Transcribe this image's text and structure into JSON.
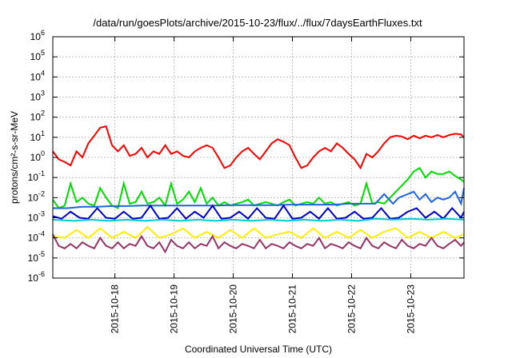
{
  "chart_data": {
    "type": "line",
    "title": "/data/run/goesPlots/archive/2015-10-23/flux/../flux/7daysEarthFluxes.txt",
    "xlabel": "Coordinated Universal Time (UTC)",
    "ylabel": "protons/cm²-s-sr-MeV",
    "x_range_days": [
      16.95,
      23.9
    ],
    "yscale": "log",
    "ylim_exp": [
      -6,
      6
    ],
    "y_tick_exponents": [
      -6,
      -5,
      -4,
      -3,
      -2,
      -1,
      0,
      1,
      2,
      3,
      4,
      5,
      6
    ],
    "y_tick_base": "10",
    "x_ticks": [
      {
        "day": 18,
        "label": "2015-10-18"
      },
      {
        "day": 19,
        "label": "2015-10-19"
      },
      {
        "day": 20,
        "label": "2015-10-20"
      },
      {
        "day": 21,
        "label": "2015-10-21"
      },
      {
        "day": 22,
        "label": "2015-10-22"
      },
      {
        "day": 23,
        "label": "2015-10-23"
      }
    ],
    "grid": true,
    "legend": "none",
    "series": [
      {
        "color": "#ff0000",
        "x": [
          16.95,
          17.05,
          17.15,
          17.25,
          17.35,
          17.45,
          17.55,
          17.65,
          17.75,
          17.85,
          17.95,
          18.05,
          18.15,
          18.25,
          18.35,
          18.45,
          18.55,
          18.65,
          18.75,
          18.85,
          18.95,
          19.05,
          19.15,
          19.25,
          19.35,
          19.45,
          19.55,
          19.65,
          19.75,
          19.85,
          19.95,
          20.05,
          20.15,
          20.25,
          20.35,
          20.45,
          20.55,
          20.65,
          20.75,
          20.85,
          20.95,
          21.05,
          21.15,
          21.25,
          21.35,
          21.45,
          21.55,
          21.65,
          21.75,
          21.85,
          21.95,
          22.05,
          22.15,
          22.25,
          22.35,
          22.45,
          22.55,
          22.65,
          22.75,
          22.85,
          22.95,
          23.05,
          23.15,
          23.25,
          23.35,
          23.45,
          23.55,
          23.65,
          23.75,
          23.85,
          23.9
        ],
        "y": [
          2,
          0.8,
          0.6,
          0.4,
          2,
          1,
          5,
          12,
          30,
          35,
          4,
          2,
          4,
          1.2,
          1.5,
          3,
          1,
          2,
          1.5,
          4,
          1.5,
          2,
          1.2,
          1,
          2,
          3,
          4,
          3,
          1,
          0.3,
          0.4,
          1,
          2,
          3,
          1.5,
          0.8,
          2,
          5,
          8,
          6,
          4,
          1,
          0.3,
          0.4,
          1,
          2,
          3,
          2,
          5,
          3,
          1.5,
          0.8,
          0.3,
          1.5,
          1,
          2,
          5,
          10,
          12,
          11,
          8,
          12,
          9,
          12,
          10,
          13,
          10,
          13,
          15,
          14,
          10
        ]
      },
      {
        "color": "#00dd00",
        "x": [
          16.95,
          17.05,
          17.15,
          17.25,
          17.35,
          17.45,
          17.55,
          17.65,
          17.75,
          17.85,
          17.95,
          18.05,
          18.15,
          18.25,
          18.35,
          18.45,
          18.55,
          18.65,
          18.75,
          18.85,
          18.95,
          19.05,
          19.15,
          19.25,
          19.35,
          19.45,
          19.55,
          19.65,
          19.75,
          19.85,
          19.95,
          20.05,
          20.15,
          20.25,
          20.35,
          20.45,
          20.55,
          20.65,
          20.75,
          20.85,
          20.95,
          21.05,
          21.15,
          21.25,
          21.35,
          21.45,
          21.55,
          21.65,
          21.75,
          21.85,
          21.95,
          22.05,
          22.15,
          22.25,
          22.35,
          22.45,
          22.55,
          22.65,
          22.75,
          22.85,
          22.95,
          23.05,
          23.15,
          23.25,
          23.35,
          23.45,
          23.55,
          23.65,
          23.75,
          23.85,
          23.9
        ],
        "y": [
          0.008,
          0.003,
          0.004,
          0.05,
          0.006,
          0.01,
          0.005,
          0.004,
          0.03,
          0.01,
          0.004,
          0.003,
          0.05,
          0.005,
          0.006,
          0.02,
          0.005,
          0.006,
          0.01,
          0.004,
          0.05,
          0.005,
          0.008,
          0.02,
          0.006,
          0.03,
          0.005,
          0.01,
          0.004,
          0.006,
          0.004,
          0.005,
          0.006,
          0.008,
          0.004,
          0.005,
          0.006,
          0.005,
          0.004,
          0.006,
          0.008,
          0.004,
          0.005,
          0.006,
          0.005,
          0.01,
          0.005,
          0.006,
          0.004,
          0.005,
          0.006,
          0.004,
          0.005,
          0.05,
          0.005,
          0.006,
          0.005,
          0.01,
          0.02,
          0.04,
          0.08,
          0.2,
          0.3,
          0.1,
          0.2,
          0.15,
          0.15,
          0.2,
          0.12,
          0.08,
          0.06
        ]
      },
      {
        "color": "#1e64dc",
        "x": [
          16.95,
          17.2,
          17.45,
          17.7,
          17.95,
          18.2,
          18.45,
          18.7,
          18.95,
          19.2,
          19.45,
          19.7,
          19.95,
          20.2,
          20.45,
          20.7,
          20.95,
          21.2,
          21.45,
          21.7,
          21.95,
          22.2,
          22.4,
          22.55,
          22.7,
          22.8,
          22.95,
          23.05,
          23.15,
          23.25,
          23.35,
          23.45,
          23.55,
          23.65,
          23.75,
          23.85,
          23.9
        ],
        "y": [
          0.003,
          0.003,
          0.0035,
          0.0035,
          0.0038,
          0.0038,
          0.004,
          0.004,
          0.004,
          0.004,
          0.004,
          0.004,
          0.0042,
          0.0042,
          0.0042,
          0.0042,
          0.0045,
          0.0045,
          0.0045,
          0.0045,
          0.005,
          0.005,
          0.005,
          0.015,
          0.005,
          0.01,
          0.015,
          0.02,
          0.008,
          0.015,
          0.006,
          0.01,
          0.008,
          0.01,
          0.02,
          0.005,
          0.03
        ]
      },
      {
        "color": "#0000cc",
        "x": [
          16.95,
          17.1,
          17.25,
          17.4,
          17.55,
          17.7,
          17.85,
          18.0,
          18.15,
          18.3,
          18.45,
          18.6,
          18.75,
          18.9,
          19.05,
          19.2,
          19.35,
          19.5,
          19.65,
          19.8,
          19.95,
          20.1,
          20.25,
          20.4,
          20.55,
          20.7,
          20.85,
          21.0,
          21.15,
          21.3,
          21.45,
          21.6,
          21.75,
          21.9,
          22.05,
          22.2,
          22.35,
          22.5,
          22.65,
          22.8,
          22.95,
          23.1,
          23.25,
          23.4,
          23.55,
          23.7,
          23.85,
          23.9
        ],
        "y": [
          0.0012,
          0.0009,
          0.002,
          0.001,
          0.0009,
          0.003,
          0.001,
          0.0009,
          0.002,
          0.0009,
          0.001,
          0.004,
          0.0009,
          0.001,
          0.003,
          0.0009,
          0.002,
          0.001,
          0.004,
          0.0009,
          0.001,
          0.002,
          0.0009,
          0.003,
          0.001,
          0.0009,
          0.004,
          0.0009,
          0.001,
          0.002,
          0.0009,
          0.003,
          0.0009,
          0.001,
          0.002,
          0.0009,
          0.001,
          0.003,
          0.0009,
          0.001,
          0.002,
          0.003,
          0.001,
          0.002,
          0.0009,
          0.003,
          0.001,
          0.002
        ]
      },
      {
        "color": "#00cccc",
        "x": [
          16.95,
          17.3,
          17.6,
          17.9,
          18.2,
          18.5,
          18.8,
          19.1,
          19.4,
          19.7,
          20.0,
          20.3,
          20.6,
          20.9,
          21.2,
          21.5,
          21.8,
          22.1,
          22.4,
          22.7,
          23.0,
          23.3,
          23.6,
          23.9
        ],
        "y": [
          0.0008,
          0.0007,
          0.0008,
          0.0007,
          0.0008,
          0.0007,
          0.0008,
          0.0007,
          0.0008,
          0.0007,
          0.0008,
          0.0007,
          0.0008,
          0.0007,
          0.0008,
          0.0007,
          0.0008,
          0.0007,
          0.0009,
          0.0008,
          0.0009,
          0.0008,
          0.0009,
          0.0008
        ]
      },
      {
        "color": "#ffee00",
        "x": [
          16.95,
          17.15,
          17.35,
          17.55,
          17.75,
          17.95,
          18.15,
          18.35,
          18.55,
          18.75,
          18.95,
          19.15,
          19.35,
          19.55,
          19.75,
          19.95,
          20.15,
          20.35,
          20.55,
          20.75,
          20.95,
          21.15,
          21.35,
          21.55,
          21.75,
          21.95,
          22.15,
          22.35,
          22.55,
          22.75,
          22.95,
          23.15,
          23.35,
          23.55,
          23.75,
          23.9
        ],
        "y": [
          0.00012,
          0.0001,
          0.00025,
          0.0001,
          0.0003,
          0.0001,
          0.0002,
          0.0001,
          0.00035,
          0.0001,
          0.00015,
          0.0003,
          0.0001,
          0.0002,
          0.0001,
          0.00025,
          0.0001,
          0.0003,
          0.0001,
          0.00015,
          0.0002,
          0.0001,
          0.0003,
          0.0001,
          0.0002,
          0.0001,
          0.00025,
          0.0001,
          0.0002,
          0.0003,
          0.0001,
          0.0002,
          0.0001,
          0.0002,
          0.0001,
          0.00015
        ]
      },
      {
        "color": "#993366",
        "x": [
          16.95,
          17.05,
          17.15,
          17.25,
          17.35,
          17.45,
          17.55,
          17.65,
          17.75,
          17.85,
          17.95,
          18.05,
          18.15,
          18.25,
          18.35,
          18.45,
          18.55,
          18.65,
          18.75,
          18.85,
          18.95,
          19.05,
          19.15,
          19.25,
          19.35,
          19.45,
          19.55,
          19.65,
          19.75,
          19.85,
          19.95,
          20.05,
          20.15,
          20.25,
          20.35,
          20.45,
          20.55,
          20.65,
          20.75,
          20.85,
          20.95,
          21.05,
          21.15,
          21.25,
          21.35,
          21.45,
          21.55,
          21.65,
          21.75,
          21.85,
          21.95,
          22.05,
          22.15,
          22.25,
          22.35,
          22.45,
          22.55,
          22.65,
          22.75,
          22.85,
          22.95,
          23.05,
          23.15,
          23.25,
          23.35,
          23.45,
          23.55,
          23.65,
          23.75,
          23.85,
          23.9
        ],
        "y": [
          0.00015,
          4e-05,
          3e-05,
          5e-05,
          3e-05,
          6e-05,
          4e-05,
          3e-05,
          0.0001,
          4e-05,
          3e-05,
          6e-05,
          3e-05,
          5e-05,
          4e-05,
          0.00012,
          4e-05,
          3e-05,
          6e-05,
          2e-05,
          8e-05,
          4e-05,
          3e-05,
          6e-05,
          3e-05,
          5e-05,
          4e-05,
          0.00012,
          3e-05,
          6e-05,
          4e-05,
          3e-05,
          5e-05,
          4e-05,
          3e-05,
          8e-05,
          3e-05,
          5e-05,
          4e-05,
          3e-05,
          6e-05,
          4e-05,
          3e-05,
          5e-05,
          4e-05,
          0.0001,
          3e-05,
          5e-05,
          4e-05,
          3e-05,
          6e-05,
          4e-05,
          3e-05,
          0.0001,
          4e-05,
          3e-05,
          6e-05,
          4e-05,
          3e-05,
          8e-05,
          4e-05,
          3e-05,
          5e-05,
          4e-05,
          0.0001,
          4e-05,
          3e-05,
          5e-05,
          8e-05,
          4e-05,
          6e-05
        ]
      }
    ]
  }
}
